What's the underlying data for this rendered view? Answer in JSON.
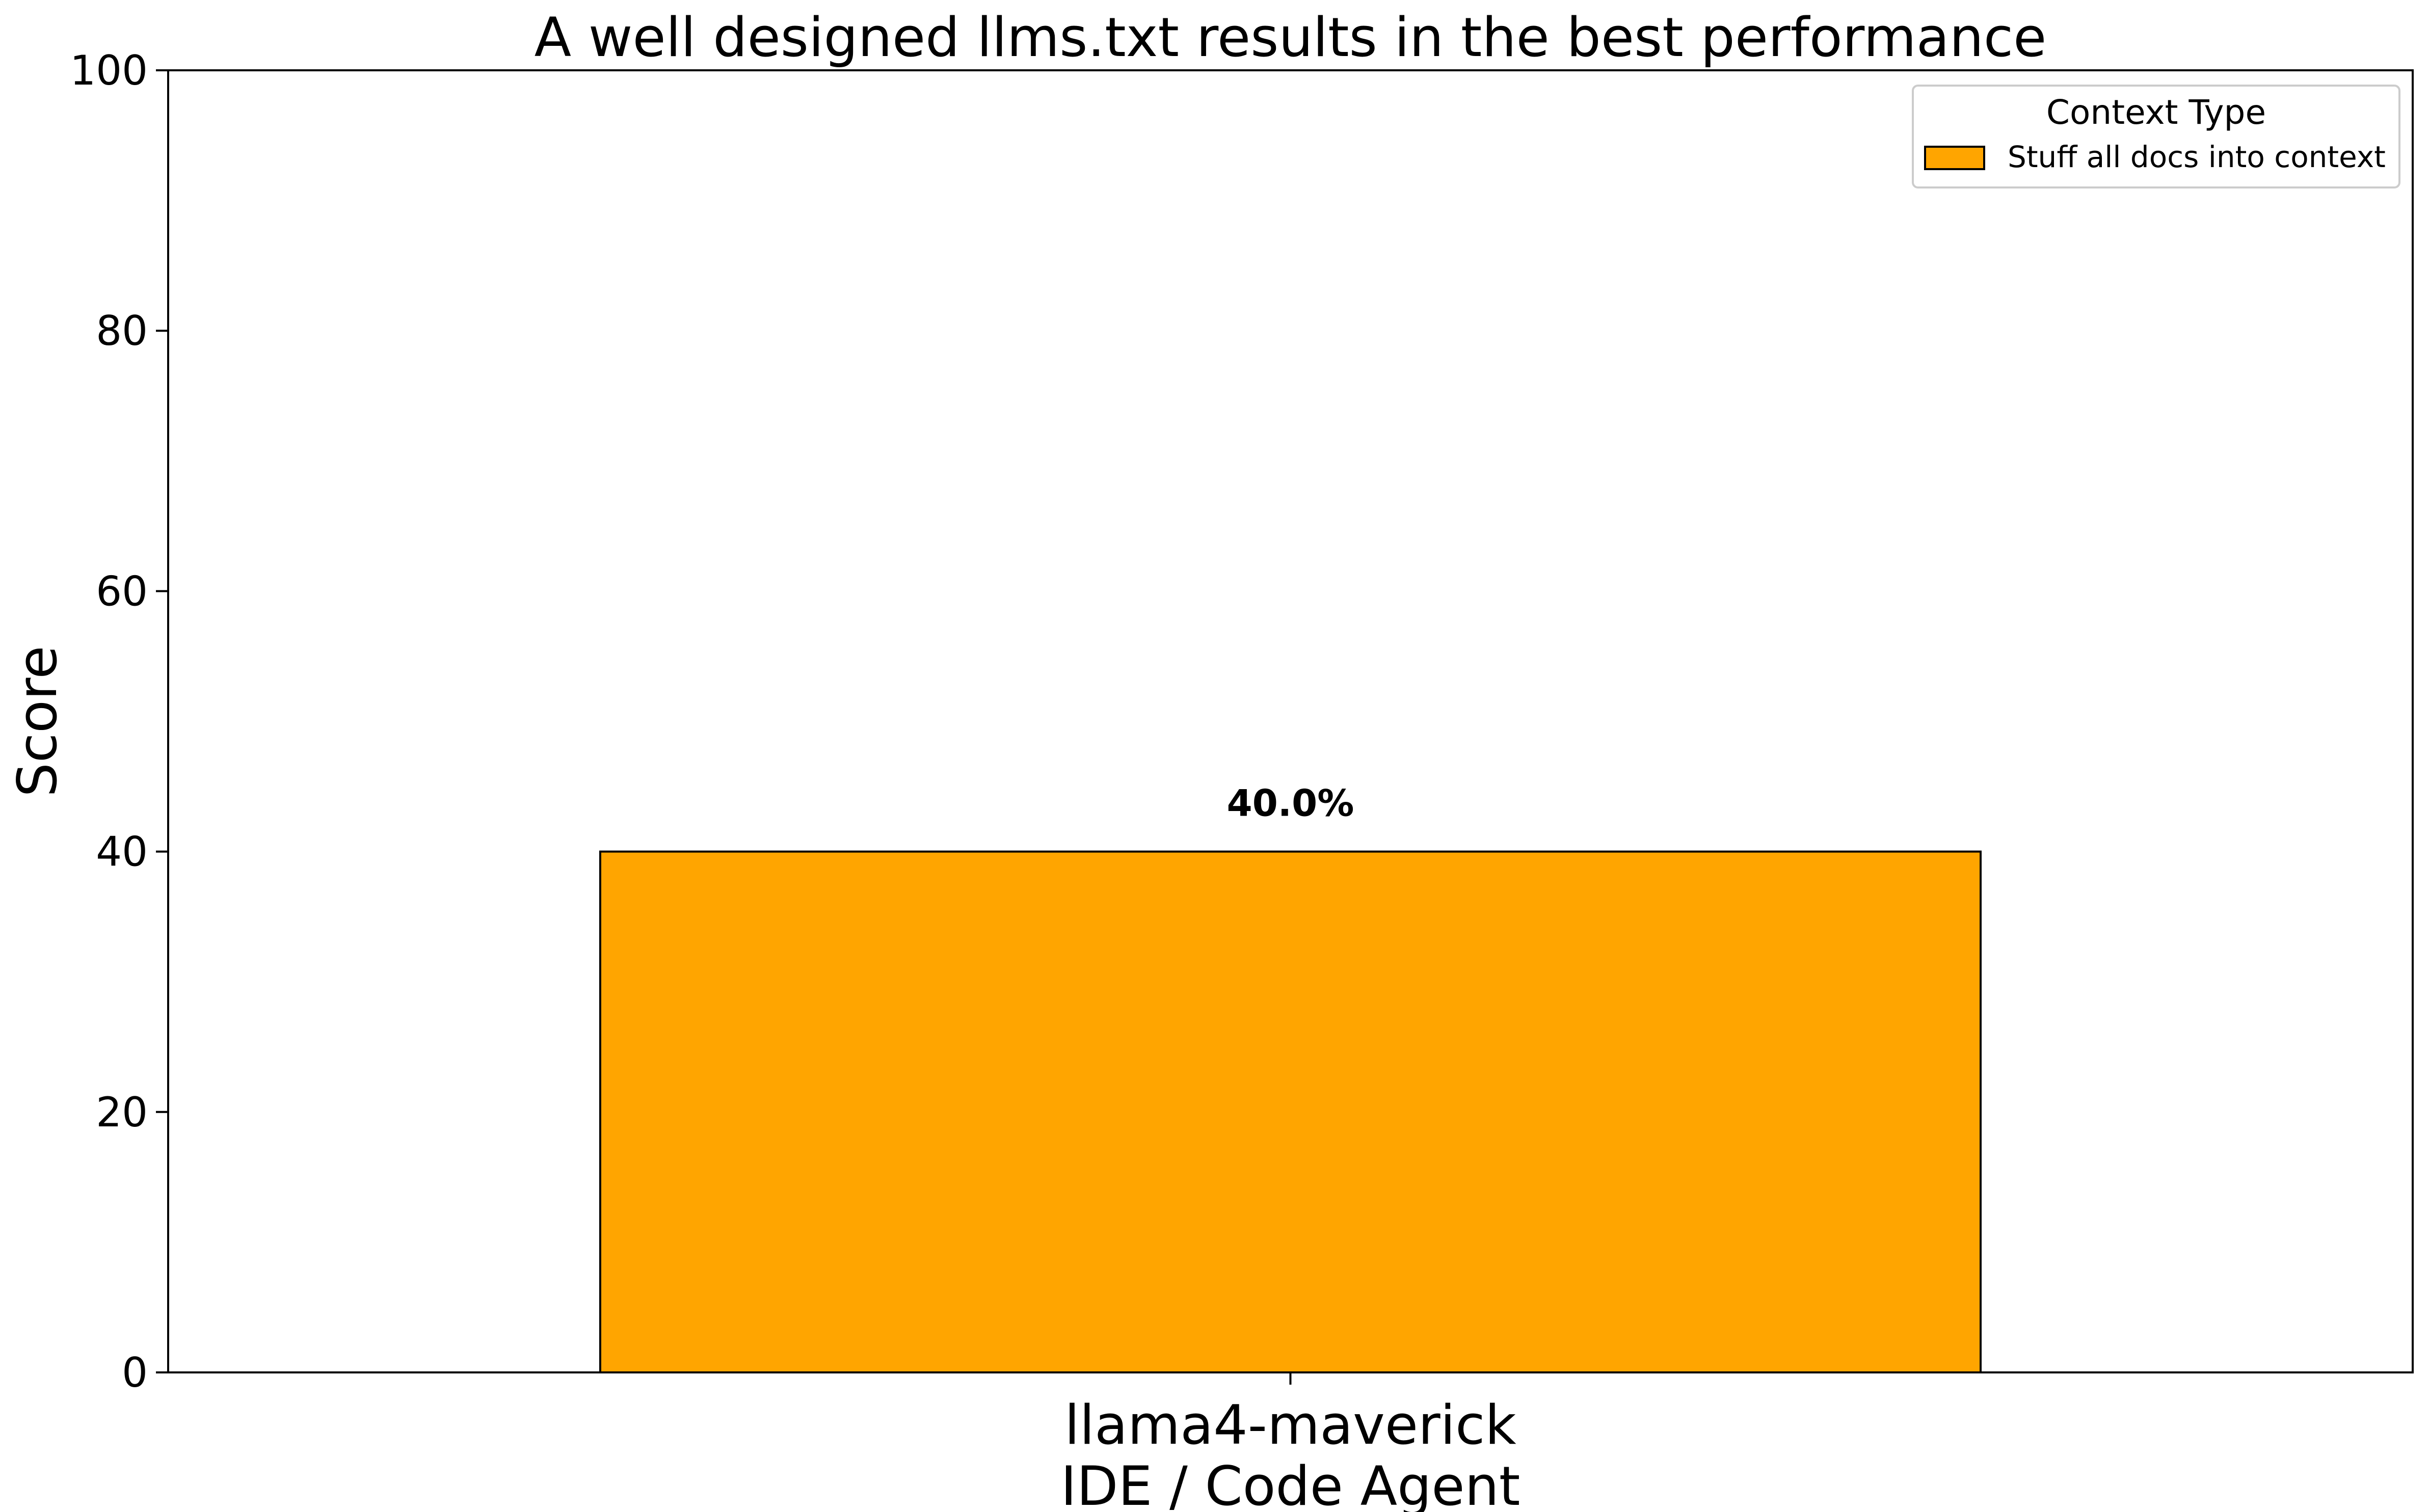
{
  "chart_data": {
    "type": "bar",
    "title": "A well designed llms.txt results in the best performance",
    "xlabel": "",
    "ylabel": "Score",
    "ylim": [
      0,
      100
    ],
    "yticks": [
      0,
      20,
      40,
      60,
      80,
      100
    ],
    "categories": [
      "llama4-maverick\nIDE / Code Agent"
    ],
    "series": [
      {
        "name": "Stuff all docs into context",
        "values": [
          40.0
        ],
        "color": "#FFA500",
        "value_labels": [
          "40.0%"
        ]
      }
    ],
    "legend": {
      "title": "Context Type",
      "placement": "top-right"
    },
    "grid": false
  }
}
